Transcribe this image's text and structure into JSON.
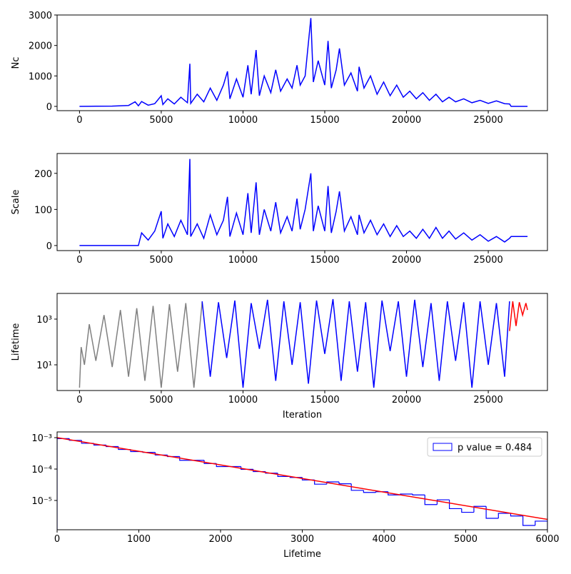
{
  "chart_data": [
    {
      "type": "line",
      "ylabel": "Nc",
      "xlim": [
        -1370,
        28620
      ],
      "ylim": [
        -140,
        3000
      ],
      "xticks": [
        0,
        5000,
        10000,
        15000,
        20000,
        25000
      ],
      "yticks": [
        0,
        1000,
        2000,
        3000
      ],
      "series": [
        {
          "color": "#0000ff",
          "x": [
            0,
            1000,
            2000,
            3000,
            3400,
            3600,
            3800,
            4200,
            4600,
            5000,
            5100,
            5400,
            5800,
            6200,
            6600,
            6750,
            6800,
            7200,
            7600,
            8000,
            8400,
            8800,
            9050,
            9200,
            9600,
            10000,
            10300,
            10500,
            10800,
            11000,
            11300,
            11700,
            12000,
            12300,
            12700,
            13000,
            13300,
            13500,
            13800,
            14150,
            14300,
            14600,
            15000,
            15200,
            15400,
            15700,
            15900,
            16200,
            16600,
            17000,
            17100,
            17400,
            17800,
            18200,
            18600,
            19000,
            19400,
            19800,
            20200,
            20600,
            21000,
            21400,
            21800,
            22200,
            22600,
            23000,
            23500,
            24000,
            24500,
            25000,
            25500,
            26000,
            26300,
            26400,
            27400
          ],
          "values": [
            0,
            5,
            10,
            30,
            150,
            20,
            160,
            40,
            90,
            350,
            60,
            250,
            80,
            300,
            120,
            1400,
            100,
            400,
            150,
            600,
            200,
            700,
            1150,
            250,
            900,
            300,
            1350,
            400,
            1850,
            350,
            1000,
            450,
            1200,
            500,
            900,
            600,
            1350,
            700,
            1000,
            2900,
            800,
            1500,
            700,
            2150,
            600,
            1200,
            1900,
            700,
            1100,
            500,
            1300,
            600,
            1000,
            400,
            800,
            350,
            700,
            300,
            500,
            250,
            450,
            200,
            400,
            150,
            300,
            150,
            250,
            120,
            200,
            100,
            180,
            90,
            80,
            0,
            0
          ]
        }
      ]
    },
    {
      "type": "line",
      "ylabel": "Scale",
      "xlim": [
        -1370,
        28620
      ],
      "ylim": [
        -14,
        255
      ],
      "xticks": [
        0,
        5000,
        10000,
        15000,
        20000,
        25000
      ],
      "yticks": [
        0,
        100,
        200
      ],
      "series": [
        {
          "color": "#0000ff",
          "x": [
            0,
            1000,
            2000,
            3000,
            3400,
            3600,
            3800,
            4200,
            4600,
            5000,
            5100,
            5400,
            5800,
            6200,
            6600,
            6750,
            6800,
            7200,
            7600,
            8000,
            8400,
            8800,
            9050,
            9200,
            9600,
            10000,
            10300,
            10500,
            10800,
            11000,
            11300,
            11700,
            12000,
            12300,
            12700,
            13000,
            13300,
            13500,
            13800,
            14150,
            14300,
            14600,
            15000,
            15200,
            15400,
            15700,
            15900,
            16200,
            16600,
            17000,
            17100,
            17400,
            17800,
            18200,
            18600,
            19000,
            19400,
            19800,
            20200,
            20600,
            21000,
            21400,
            21800,
            22200,
            22600,
            23000,
            23500,
            24000,
            24500,
            25000,
            25500,
            26000,
            26300,
            26400,
            27400
          ],
          "values": [
            0,
            0,
            0,
            0,
            0,
            0,
            35,
            15,
            40,
            95,
            20,
            60,
            25,
            70,
            30,
            240,
            25,
            60,
            20,
            85,
            30,
            70,
            135,
            25,
            90,
            30,
            145,
            35,
            175,
            30,
            100,
            40,
            120,
            35,
            80,
            40,
            130,
            45,
            100,
            200,
            40,
            110,
            40,
            165,
            35,
            95,
            150,
            40,
            80,
            30,
            85,
            35,
            70,
            30,
            60,
            25,
            55,
            25,
            40,
            20,
            45,
            20,
            50,
            20,
            40,
            18,
            35,
            15,
            30,
            12,
            25,
            10,
            20,
            25,
            25
          ]
        }
      ]
    },
    {
      "type": "line",
      "ylabel": "Lifetime",
      "xlabel": "Iteration",
      "log_y": true,
      "xlim": [
        -1370,
        28620
      ],
      "ylim": [
        0.75,
        13300
      ],
      "xticks": [
        0,
        5000,
        10000,
        15000,
        20000,
        25000
      ],
      "yticks": [
        {
          "value": 10,
          "label": "10¹"
        },
        {
          "value": 1000,
          "label": "10³"
        }
      ],
      "series": [
        {
          "color": "#808080",
          "x": [
            0,
            100,
            300,
            600,
            1000,
            1500,
            2000,
            2500,
            3000,
            3500,
            4000,
            4500,
            5000,
            5500,
            6000,
            6500,
            7000,
            7500
          ],
          "values": [
            1,
            60,
            10,
            600,
            15,
            1500,
            8,
            2500,
            3,
            3000,
            2,
            3800,
            1,
            4500,
            5,
            5000,
            1,
            5500
          ]
        },
        {
          "color": "#0000ff",
          "x": [
            7500,
            8000,
            8500,
            9000,
            9500,
            10000,
            10500,
            11000,
            11500,
            12000,
            12500,
            13000,
            13500,
            14000,
            14500,
            15000,
            15500,
            16000,
            16500,
            17000,
            17500,
            18000,
            18500,
            19000,
            19500,
            20000,
            20500,
            21000,
            21500,
            22000,
            22500,
            23000,
            23500,
            24000,
            24500,
            25000,
            25500,
            26000,
            26300
          ],
          "values": [
            6000,
            3,
            5500,
            20,
            6500,
            1,
            5000,
            50,
            7000,
            2,
            6000,
            10,
            5500,
            1.5,
            6500,
            30,
            7500,
            2,
            6000,
            5,
            5500,
            1,
            6500,
            40,
            6000,
            3,
            7000,
            8,
            5000,
            2,
            6000,
            15,
            5500,
            1,
            6000,
            10,
            5000,
            3,
            6000
          ]
        },
        {
          "color": "#ff0000",
          "x": [
            26300,
            26500,
            26700,
            26900,
            27100,
            27300,
            27400
          ],
          "values": [
            300,
            6000,
            500,
            5500,
            1500,
            5000,
            2500
          ]
        }
      ]
    },
    {
      "type": "histogram",
      "xlabel": "Lifetime",
      "log_y": true,
      "xlim": [
        0,
        6000
      ],
      "ylim": [
        1.17e-06,
        0.00152
      ],
      "xticks": [
        0,
        1000,
        2000,
        3000,
        4000,
        5000,
        6000
      ],
      "yticks": [
        {
          "value": 1e-05,
          "label": "10⁻⁵"
        },
        {
          "value": 0.0001,
          "label": "10⁻⁴"
        },
        {
          "value": 0.001,
          "label": "10⁻³"
        }
      ],
      "legend": "upper right",
      "bins": [
        0,
        150,
        300,
        450,
        600,
        750,
        900,
        1050,
        1200,
        1350,
        1500,
        1650,
        1800,
        1950,
        2100,
        2250,
        2400,
        2550,
        2700,
        2850,
        3000,
        3150,
        3300,
        3450,
        3600,
        3750,
        3900,
        4050,
        4200,
        4350,
        4500,
        4650,
        4800,
        4950,
        5100,
        5250,
        5400,
        5550,
        5700,
        5850,
        6000
      ],
      "series": [
        {
          "name": "p value = 0.484",
          "color": "#0000ff",
          "values": [
            0.00093,
            0.00082,
            0.00066,
            0.00058,
            0.00052,
            0.00042,
            0.00036,
            0.00034,
            0.00028,
            0.00025,
            0.00019,
            0.00019,
            0.00015,
            0.00012,
            0.00012,
            9.8e-05,
            8.3e-05,
            7.4e-05,
            5.8e-05,
            5.4e-05,
            4.5e-05,
            3.3e-05,
            3.9e-05,
            3.4e-05,
            2.1e-05,
            1.8e-05,
            1.9e-05,
            1.5e-05,
            1.6e-05,
            1.5e-05,
            7.4e-06,
            1.05e-05,
            5.5e-06,
            4.2e-06,
            6.5e-06,
            2.7e-06,
            3.9e-06,
            3.2e-06,
            1.6e-06,
            2.2e-06
          ]
        }
      ],
      "fit": {
        "color": "#ff0000",
        "x": [
          0,
          6000
        ],
        "values": [
          0.001,
          2.5e-06
        ]
      }
    }
  ]
}
